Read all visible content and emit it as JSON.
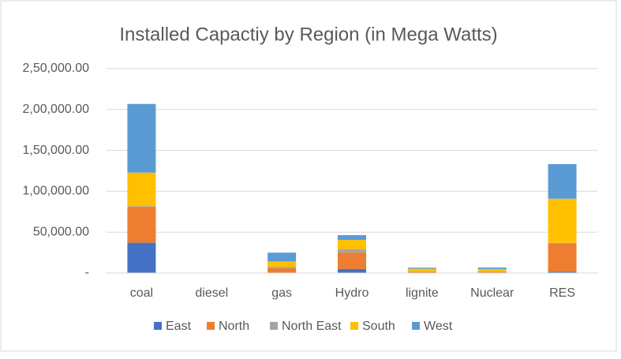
{
  "chart_data": {
    "type": "stacked_bar",
    "title": "Installed Capactiy by Region  (in Mega Watts)",
    "categories": [
      "coal",
      "diesel",
      "gas",
      "Hydro",
      "lignite",
      "Nuclear",
      "RES"
    ],
    "series": [
      {
        "name": "East",
        "color": "#4472c4",
        "values": [
          37000,
          40,
          100,
          5000,
          0,
          0,
          1500
        ]
      },
      {
        "name": "North",
        "color": "#ed7d31",
        "values": [
          44000,
          0,
          5800,
          20000,
          1600,
          1600,
          35000
        ]
      },
      {
        "name": "North East",
        "color": "#a5a5a5",
        "values": [
          800,
          36,
          1700,
          4000,
          0,
          0,
          400
        ]
      },
      {
        "name": "South",
        "color": "#ffc000",
        "values": [
          41000,
          400,
          6500,
          11500,
          3600,
          3300,
          54000
        ]
      },
      {
        "name": "West",
        "color": "#5b9bd5",
        "values": [
          84000,
          0,
          10800,
          5800,
          1300,
          1800,
          42300
        ]
      }
    ],
    "ylim": [
      0,
      250000
    ],
    "yticks": [
      {
        "value": 0,
        "label": "-"
      },
      {
        "value": 50000,
        "label": "50,000.00"
      },
      {
        "value": 100000,
        "label": "1,00,000.00"
      },
      {
        "value": 150000,
        "label": "1,50,000.00"
      },
      {
        "value": 200000,
        "label": "2,00,000.00"
      },
      {
        "value": 250000,
        "label": "2,50,000.00"
      }
    ],
    "grid": true,
    "legend": "bottom"
  }
}
